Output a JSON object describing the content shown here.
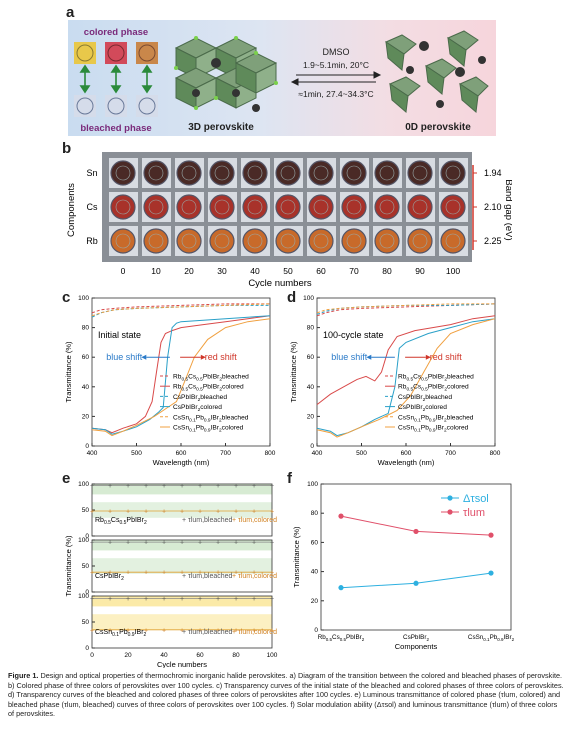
{
  "panel_a": {
    "label": "a",
    "colored_phase": "colored phase",
    "bleached_phase": "bleached phase",
    "perovskite_3d": "3D perovskite",
    "perovskite_0d": "0D perovskite",
    "solvent": "DMSO",
    "forward_condition": "1.9~5.1min, 20°C",
    "reverse_condition": "≈1min, 27.4~34.3°C",
    "colors": {
      "yellow": "#e8c84a",
      "red": "#d24a5a",
      "orange": "#c9874a",
      "bleached": "#c8d2e4"
    }
  },
  "panel_b": {
    "label": "b",
    "ylabel_left": "Components",
    "ylabel_right": "Band gap (eV)",
    "xlabel": "Cycle numbers",
    "rows": [
      "Sn",
      "Cs",
      "Rb"
    ],
    "band_gaps": [
      "1.94",
      "2.10",
      "2.25"
    ],
    "cycles": [
      "0",
      "10",
      "20",
      "30",
      "40",
      "50",
      "60",
      "70",
      "80",
      "90",
      "100"
    ],
    "row_colors": [
      "#4a2a26",
      "#a8322a",
      "#c86a2a"
    ]
  },
  "chart_data": [
    {
      "panel": "c",
      "type": "line",
      "title": "Initial state",
      "xlabel": "Wavelength (nm)",
      "ylabel": "Transmittance (%)",
      "xlim": [
        400,
        800
      ],
      "ylim": [
        0,
        100
      ],
      "xticks": [
        "400",
        "500",
        "600",
        "700",
        "800"
      ],
      "yticks": [
        "0",
        "20",
        "40",
        "60",
        "80",
        "100"
      ],
      "annotations": [
        "blue shift",
        "red shift"
      ],
      "series": [
        {
          "name": "Rb0.5Cs0.5PbIBr2-bleached",
          "color": "#d94a4a",
          "dash": true,
          "x": [
            400,
            420,
            450,
            500,
            600,
            700,
            800
          ],
          "y": [
            90,
            92,
            93,
            94,
            95,
            96,
            96
          ]
        },
        {
          "name": "Rb0.5Cs0.5PbIBr2-colored",
          "color": "#d94a4a",
          "dash": false,
          "x": [
            400,
            430,
            445,
            470,
            500,
            520,
            535,
            545,
            555,
            565,
            580,
            600,
            650,
            700,
            750,
            800
          ],
          "y": [
            12,
            11,
            9,
            12,
            15,
            20,
            30,
            50,
            70,
            76,
            78,
            80,
            82,
            84,
            86,
            88
          ]
        },
        {
          "name": "CsPbIBr2-bleached",
          "color": "#2aa0c8",
          "dash": true,
          "x": [
            400,
            420,
            450,
            500,
            600,
            700,
            800
          ],
          "y": [
            87,
            90,
            92,
            93,
            94,
            95,
            95
          ]
        },
        {
          "name": "CsPbIBr2-colored",
          "color": "#2aa0c8",
          "dash": false,
          "x": [
            400,
            430,
            445,
            470,
            500,
            530,
            550,
            560,
            570,
            580,
            590,
            600,
            650,
            700,
            750,
            800
          ],
          "y": [
            12,
            11,
            8,
            10,
            13,
            18,
            23,
            26,
            60,
            80,
            83,
            84,
            85,
            86,
            87,
            88
          ]
        },
        {
          "name": "CsSn0.1Pb0.9IBr2-bleached",
          "color": "#f0a040",
          "dash": true,
          "x": [
            400,
            420,
            450,
            500,
            600,
            700,
            800
          ],
          "y": [
            88,
            90,
            92,
            93,
            94,
            95,
            96
          ]
        },
        {
          "name": "CsSn0.1Pb0.9IBr2-colored",
          "color": "#f0a040",
          "dash": false,
          "x": [
            400,
            430,
            445,
            470,
            500,
            540,
            570,
            590,
            610,
            630,
            660,
            700,
            750,
            800
          ],
          "y": [
            11,
            10,
            7,
            10,
            14,
            20,
            26,
            30,
            45,
            60,
            72,
            80,
            84,
            86
          ]
        }
      ]
    },
    {
      "panel": "d",
      "type": "line",
      "title": "100-cycle state",
      "xlabel": "Wavelength (nm)",
      "ylabel": "Transmittance (%)",
      "xlim": [
        400,
        800
      ],
      "ylim": [
        0,
        100
      ],
      "xticks": [
        "400",
        "500",
        "600",
        "700",
        "800"
      ],
      "yticks": [
        "0",
        "20",
        "40",
        "60",
        "80",
        "100"
      ],
      "annotations": [
        "blue shift",
        "red shift"
      ],
      "series": [
        {
          "name": "Rb0.5Cs0.5PbIBr2-bleached",
          "color": "#d94a4a",
          "dash": true,
          "x": [
            400,
            420,
            450,
            500,
            600,
            700,
            800
          ],
          "y": [
            88,
            90,
            92,
            93,
            94,
            95,
            96
          ]
        },
        {
          "name": "Rb0.5Cs0.5PbIBr2-colored",
          "color": "#d94a4a",
          "dash": false,
          "x": [
            400,
            430,
            460,
            490,
            510,
            530,
            545,
            560,
            580,
            620,
            660,
            700,
            750,
            800
          ],
          "y": [
            28,
            35,
            40,
            45,
            47,
            44,
            50,
            65,
            74,
            78,
            80,
            82,
            86,
            88
          ]
        },
        {
          "name": "CsPbIBr2-bleached",
          "color": "#2aa0c8",
          "dash": true,
          "x": [
            400,
            420,
            450,
            500,
            600,
            700,
            800
          ],
          "y": [
            89,
            91,
            93,
            94,
            95,
            95,
            96
          ]
        },
        {
          "name": "CsPbIBr2-colored",
          "color": "#2aa0c8",
          "dash": false,
          "x": [
            400,
            430,
            445,
            470,
            500,
            530,
            560,
            575,
            585,
            600,
            650,
            700,
            750,
            800
          ],
          "y": [
            12,
            10,
            7,
            9,
            13,
            18,
            22,
            40,
            66,
            70,
            76,
            80,
            84,
            86
          ]
        },
        {
          "name": "CsSn0.1Pb0.9IBr2-bleached",
          "color": "#f0a040",
          "dash": true,
          "x": [
            400,
            420,
            450,
            500,
            600,
            700,
            800
          ],
          "y": [
            90,
            92,
            93,
            94,
            95,
            96,
            96
          ]
        },
        {
          "name": "CsSn0.1Pb0.9IBr2-colored",
          "color": "#f0a040",
          "dash": false,
          "x": [
            400,
            430,
            445,
            470,
            500,
            540,
            580,
            610,
            640,
            670,
            700,
            750,
            800
          ],
          "y": [
            11,
            9,
            6,
            9,
            13,
            18,
            24,
            34,
            50,
            66,
            76,
            82,
            86
          ]
        }
      ]
    },
    {
      "panel": "e",
      "type": "line",
      "xlabel": "Cycle numbers",
      "ylabel": "Transmittance (%)",
      "xticks": [
        "0",
        "20",
        "40",
        "60",
        "80",
        "100"
      ],
      "subplots": [
        {
          "sample": "Rb0.5Cs0.5PbIBr2",
          "yticks": [
            "0",
            "50",
            "100"
          ],
          "band_color": "#d7ebd3",
          "bleached": 97,
          "colored": 78,
          "cycles": [
            0,
            10,
            20,
            30,
            40,
            50,
            60,
            70,
            80,
            90,
            100
          ]
        },
        {
          "sample": "CsPbIBr2",
          "yticks": [
            "0",
            "50",
            "100"
          ],
          "band_color": "#d7ebd3",
          "bleached": 96,
          "colored": 68,
          "cycles": [
            0,
            10,
            20,
            30,
            40,
            50,
            60,
            70,
            80,
            90,
            100
          ]
        },
        {
          "sample": "CsSn0.1Pb0.9IBr2",
          "yticks": [
            "0",
            "50",
            "100"
          ],
          "band_color": "#fbeaa8",
          "bleached": 95,
          "colored": 65,
          "cycles": [
            0,
            10,
            20,
            30,
            40,
            50,
            60,
            70,
            80,
            90,
            100
          ]
        }
      ],
      "legend": [
        "τlum,bleached",
        "τlum,colored"
      ]
    },
    {
      "panel": "f",
      "type": "line",
      "xlabel": "Components",
      "ylabel": "Transmittance (%)",
      "ylim": [
        0,
        100
      ],
      "yticks": [
        "0",
        "20",
        "40",
        "60",
        "80",
        "100"
      ],
      "categories": [
        "Rb0.5Cs0.5PbIBr2",
        "CsPbIBr2",
        "CsSn0.1Pb0.9IBr2"
      ],
      "series": [
        {
          "name": "Δτsol",
          "color": "#2eb0e0",
          "values": [
            29,
            32,
            39
          ]
        },
        {
          "name": "τlum",
          "color": "#e0506a",
          "values": [
            78,
            67.5,
            65
          ]
        }
      ]
    }
  ],
  "caption": {
    "lead": "Figure 1.",
    "text": "Design and optical properties of thermochromic inorganic halide perovskites. a) Diagram of the transition between the colored and bleached phases of perovskite. b) Colored phase of three colors of perovskites over 100 cycles. c) Transparency curves of the initial state of the bleached and colored phases of three colors of perovskites. d) Transparency curves of the bleached and colored phases of three colors of perovskites after 100 cycles. e) Luminous transmittance of colored phase (τlum, colored) and bleached phase (τlum, bleached) curves of three colors of perovskites over 100 cycles. f) Solar modulation ability (Δτsol) and luminous transmittance (τlum) of three colors of perovskites."
  }
}
